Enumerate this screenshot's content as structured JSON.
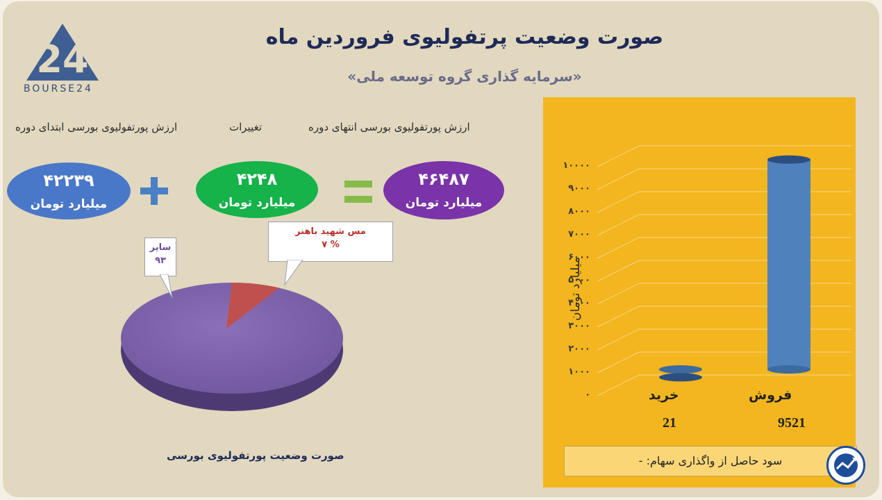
{
  "title": "صورت وضعیت پرتفولیوی فروردین ماه",
  "subtitle": "«سرمایه گذاری گروه توسعه ملی»",
  "logo": {
    "text": "BOURSE24",
    "icon": "bourse24-logo-icon"
  },
  "headers": {
    "start": "ارزش پورتفولیوی بورسی ابتدای دوره",
    "change": "تغییرات",
    "end": "ارزش پورتفولیوی بورسی انتهای دوره"
  },
  "values": {
    "start": {
      "number": "۴۲۲۳۹",
      "unit": "میلیارد تومان",
      "color": "#4a78c8"
    },
    "change": {
      "number": "۴۲۴۸",
      "unit": "میلیارد تومان",
      "color": "#16b24a"
    },
    "end": {
      "number": "۴۶۴۸۷",
      "unit": "میلیارد تومان",
      "color": "#7a33a8"
    }
  },
  "operators": {
    "plus": "plus-icon",
    "equals": "equals-icon"
  },
  "chart_data": [
    {
      "type": "pie",
      "title": "صورت وضعیت پورتفولیوی بورسی",
      "labels": [
        "مس شهید باهنر",
        "سایر"
      ],
      "values": [
        7,
        93
      ],
      "label_values": [
        "% ۷",
        "۹۳"
      ],
      "colors": [
        "#c0504d",
        "#7e64a8"
      ]
    },
    {
      "type": "bar",
      "categories": [
        "خرید",
        "فروش"
      ],
      "values": [
        21,
        9521
      ],
      "value_labels": [
        "21",
        "9521"
      ],
      "ylabel": "میلیارد تومان",
      "ylim": [
        0,
        10000
      ],
      "yticks": [
        "۰",
        "۱۰۰۰",
        "۲۰۰۰",
        "۳۰۰۰",
        "۴۰۰۰",
        "۵۰۰۰",
        "۶۰۰۰",
        "۷۰۰۰",
        "۸۰۰۰",
        "۹۰۰۰",
        "۱۰۰۰۰"
      ],
      "grid": true,
      "bar_color": "#4f81bd",
      "background": "#f3b61f"
    }
  ],
  "note": "سود حاصل از واگذاری سهام: -",
  "badge_icon": "trend-arrow-icon"
}
